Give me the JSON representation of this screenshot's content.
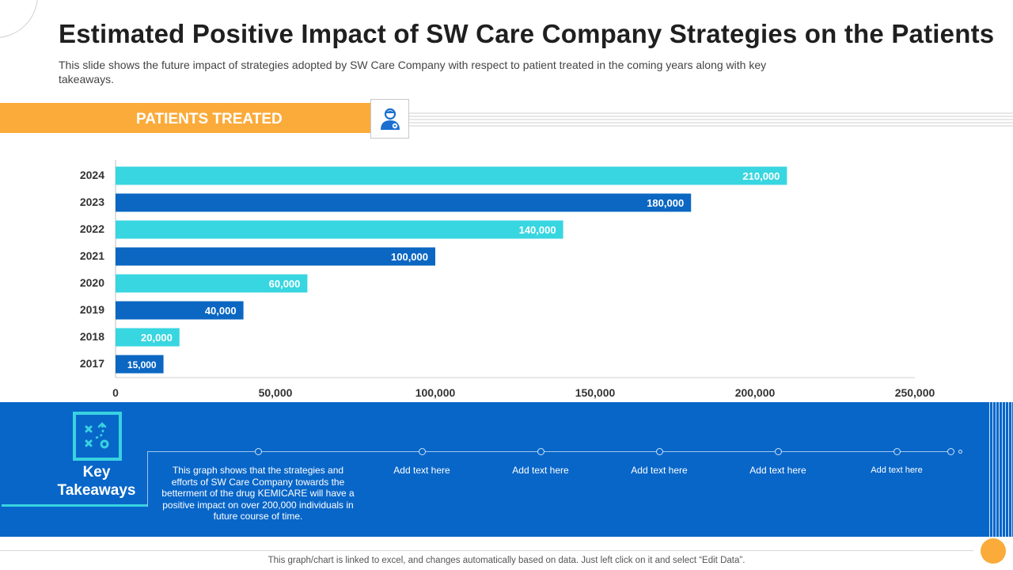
{
  "slide": {
    "title": "Estimated Positive Impact of SW Care Company Strategies on the Patients",
    "subtitle": "This slide shows the future impact of strategies adopted by SW Care Company with respect to patient treated in the coming years along with key takeaways.",
    "banner_label": "PATIENTS TREATED",
    "banner_icon": "doctor-icon"
  },
  "colors": {
    "orange": "#fbab3a",
    "cyan": "#39d2e0",
    "blue": "#0866c8",
    "bar_light": "#38d6e0",
    "bar_dark": "#0b67c2"
  },
  "chart_data": {
    "type": "bar",
    "orientation": "horizontal",
    "title": "PATIENTS TREATED",
    "categories": [
      "2024",
      "2023",
      "2022",
      "2021",
      "2020",
      "2019",
      "2018",
      "2017"
    ],
    "values": [
      210000,
      180000,
      140000,
      100000,
      60000,
      40000,
      20000,
      15000
    ],
    "value_labels": [
      "210,000",
      "180,000",
      "140,000",
      "100,000",
      "60,000",
      "40,000",
      "20,000",
      "15,000"
    ],
    "xlim": [
      0,
      250000
    ],
    "xticks": [
      0,
      50000,
      100000,
      150000,
      200000,
      250000
    ],
    "xtick_labels": [
      "0",
      "50,000",
      "100,000",
      "150,000",
      "200,000",
      "250,000"
    ],
    "xlabel": "",
    "ylabel": "",
    "grid": false,
    "legend": "none"
  },
  "takeaways": {
    "label": "Key Takeaways",
    "icon": "strategy-icon",
    "main_text": "This graph shows that the strategies and efforts of SW Care Company towards the betterment of the drug KEMICARE will have a positive impact on over 200,000 individuals in future course of time.",
    "placeholders": [
      "Add text here",
      "Add text here",
      "Add text here",
      "Add text here",
      "Add text here"
    ]
  },
  "footer": {
    "note": "This graph/chart is linked to excel, and changes automatically based on data. Just left click on it and select “Edit Data”."
  }
}
